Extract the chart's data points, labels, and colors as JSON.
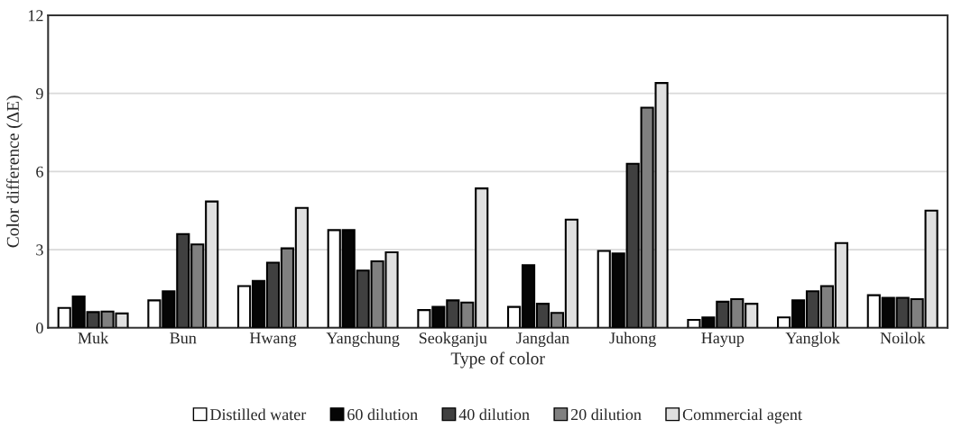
{
  "chart_data": {
    "type": "bar",
    "xlabel": "Type of color",
    "ylabel": "Color difference (ΔE)",
    "categories": [
      "Muk",
      "Bun",
      "Hwang",
      "Yangchung",
      "Seokganju",
      "Jangdan",
      "Juhong",
      "Hayup",
      "Yanglok",
      "Noilok"
    ],
    "series": [
      {
        "name": "Distilled water",
        "color": "#ffffff",
        "values": [
          0.76,
          1.05,
          1.6,
          3.75,
          0.68,
          0.8,
          2.95,
          0.3,
          0.4,
          1.25
        ]
      },
      {
        "name": "60 dilution",
        "color": "#050505",
        "values": [
          1.2,
          1.4,
          1.8,
          3.75,
          0.8,
          2.4,
          2.85,
          0.4,
          1.05,
          1.15
        ]
      },
      {
        "name": "40 dilution",
        "color": "#404040",
        "values": [
          0.6,
          3.6,
          2.5,
          2.2,
          1.05,
          0.92,
          6.3,
          1.0,
          1.4,
          1.15
        ]
      },
      {
        "name": "20 dilution",
        "color": "#808080",
        "values": [
          0.62,
          3.2,
          3.05,
          2.55,
          0.97,
          0.57,
          8.45,
          1.1,
          1.6,
          1.1
        ]
      },
      {
        "name": "Commercial agent",
        "color": "#e0e0e0",
        "values": [
          0.55,
          4.85,
          4.6,
          2.9,
          5.35,
          4.15,
          9.4,
          0.92,
          3.25,
          4.5
        ]
      }
    ],
    "ylim": [
      0,
      12
    ],
    "yticks": [
      0,
      3,
      6,
      9,
      12
    ],
    "grid": "y",
    "legend": "bottom"
  }
}
